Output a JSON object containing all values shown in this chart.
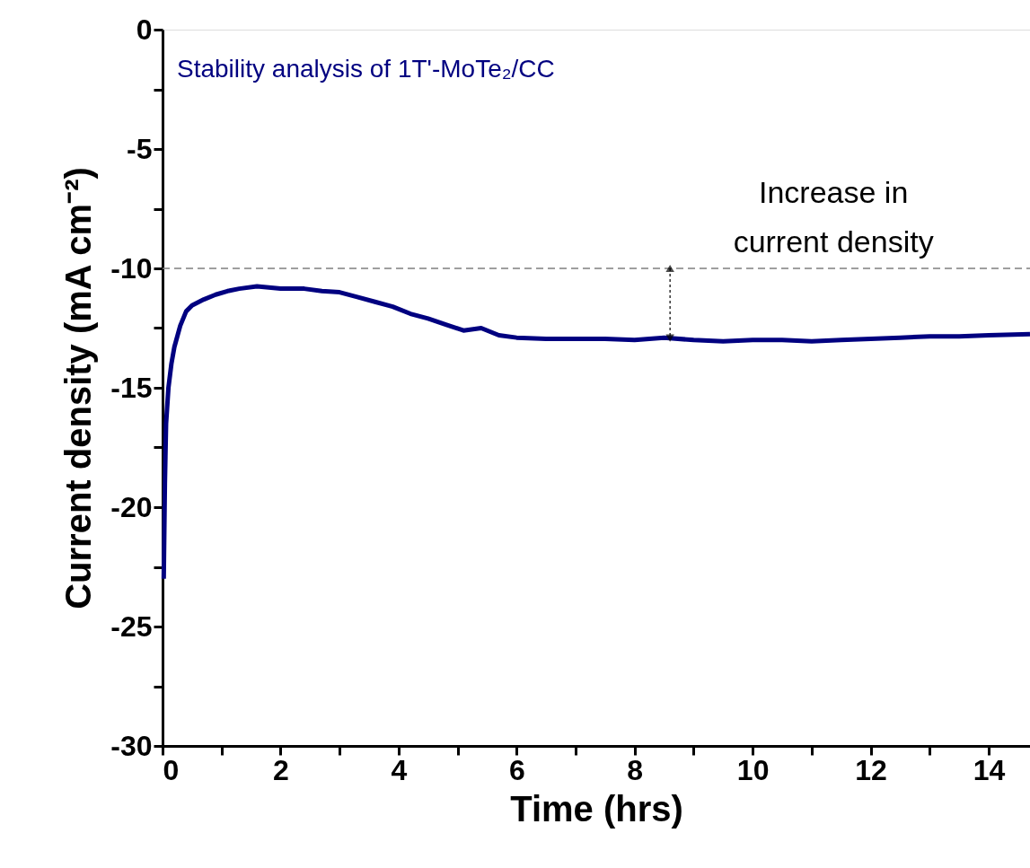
{
  "chart_data": {
    "type": "line",
    "title": "Stability analysis of 1T'-MoTe₂/CC",
    "xlabel": "Time (hrs)",
    "ylabel": "Current density (mA cm⁻²)",
    "x": [
      0.02,
      0.04,
      0.06,
      0.1,
      0.15,
      0.2,
      0.3,
      0.4,
      0.5,
      0.7,
      0.9,
      1.1,
      1.3,
      1.6,
      2.0,
      2.4,
      2.7,
      3.0,
      3.3,
      3.6,
      3.9,
      4.2,
      4.5,
      4.8,
      5.1,
      5.4,
      5.7,
      6.0,
      6.5,
      7.0,
      7.5,
      8.0,
      8.5,
      9.0,
      9.5,
      10.0,
      10.5,
      11.0,
      11.5,
      12.0,
      12.5,
      13.0,
      13.5,
      14.0,
      14.7
    ],
    "series": [
      {
        "color": "#000080",
        "values": [
          -23,
          -19,
          -16.5,
          -15,
          -14,
          -13.3,
          -12.4,
          -11.8,
          -11.55,
          -11.3,
          -11.1,
          -10.95,
          -10.85,
          -10.75,
          -10.85,
          -10.85,
          -10.95,
          -11.0,
          -11.2,
          -11.4,
          -11.6,
          -11.9,
          -12.1,
          -12.35,
          -12.6,
          -12.5,
          -12.8,
          -12.9,
          -12.95,
          -12.95,
          -12.95,
          -13.0,
          -12.9,
          -13.0,
          -13.05,
          -13.0,
          -13.0,
          -13.05,
          -13.0,
          -12.95,
          -12.9,
          -12.85,
          -12.85,
          -12.8,
          -12.75
        ]
      }
    ],
    "xlim": [
      0,
      14.7
    ],
    "ylim": [
      -30,
      0
    ],
    "xticks": [
      0,
      {
        "value": 1,
        "label": null
      },
      2,
      {
        "value": 3,
        "label": null
      },
      4,
      {
        "value": 5,
        "label": null
      },
      6,
      {
        "value": 7,
        "label": null
      },
      8,
      {
        "value": 9,
        "label": null
      },
      10,
      {
        "value": 11,
        "label": null
      },
      12,
      {
        "value": 13,
        "label": null
      },
      14
    ],
    "yticks": [
      -30,
      {
        "value": -27.5,
        "label": null
      },
      -25,
      {
        "value": -22.5,
        "label": null
      },
      -20,
      {
        "value": -17.5,
        "label": null
      },
      -15,
      {
        "value": -12.5,
        "label": null
      },
      -10,
      {
        "value": -7.5,
        "label": null
      },
      -5,
      {
        "value": -2.5,
        "label": null
      },
      0
    ],
    "ref_lines": [
      {
        "axis": "y",
        "value": -10,
        "color": "#808080",
        "line_style": "dashed"
      }
    ],
    "annotations": [
      {
        "text": "Increase in\ncurrent density",
        "x": 8.6,
        "y": -10
      }
    ],
    "grid": false
  }
}
